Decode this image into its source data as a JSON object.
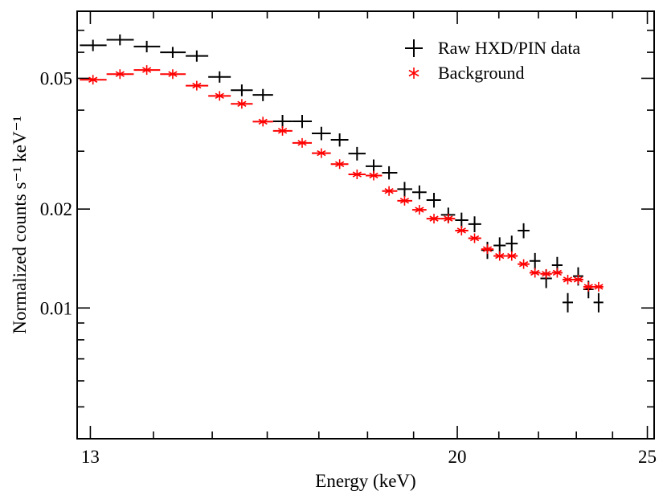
{
  "chart_data": {
    "type": "scatter",
    "title": "",
    "xlabel": "Energy (keV)",
    "ylabel": "Normalized counts s⁻¹ keV⁻¹",
    "x_scale": "log",
    "y_scale": "log",
    "xlim": [
      12.8,
      25.2
    ],
    "ylim": [
      0.004,
      0.08
    ],
    "x_ticks": [
      {
        "value": 13,
        "label": "13"
      },
      {
        "value": 20,
        "label": "20"
      },
      {
        "value": 25,
        "label": "25"
      }
    ],
    "y_ticks": [
      {
        "value": 0.01,
        "label": "0.01"
      },
      {
        "value": 0.02,
        "label": "0.02"
      },
      {
        "value": 0.05,
        "label": "0.05"
      }
    ],
    "grid": false,
    "legend_position": "top-right",
    "series": [
      {
        "name": "Raw HXD/PIN data",
        "marker": "plus",
        "color": "#000000",
        "points": [
          {
            "x": 13.04,
            "xlo": 12.84,
            "xhi": 13.25,
            "y": 0.063,
            "yerr": 0.0025
          },
          {
            "x": 13.46,
            "xlo": 13.25,
            "xhi": 13.68,
            "y": 0.0655,
            "yerr": 0.0025
          },
          {
            "x": 13.89,
            "xlo": 13.68,
            "xhi": 14.11,
            "y": 0.0625,
            "yerr": 0.0025
          },
          {
            "x": 14.32,
            "xlo": 14.11,
            "xhi": 14.54,
            "y": 0.06,
            "yerr": 0.0023
          },
          {
            "x": 14.73,
            "xlo": 14.54,
            "xhi": 14.93,
            "y": 0.0585,
            "yerr": 0.0023
          },
          {
            "x": 15.13,
            "xlo": 14.93,
            "xhi": 15.33,
            "y": 0.0505,
            "yerr": 0.002
          },
          {
            "x": 15.53,
            "xlo": 15.33,
            "xhi": 15.73,
            "y": 0.046,
            "yerr": 0.0019
          },
          {
            "x": 15.92,
            "xlo": 15.73,
            "xhi": 16.11,
            "y": 0.0445,
            "yerr": 0.0019
          },
          {
            "x": 16.29,
            "xlo": 16.11,
            "xhi": 16.48,
            "y": 0.037,
            "yerr": 0.0017
          },
          {
            "x": 16.67,
            "xlo": 16.48,
            "xhi": 16.86,
            "y": 0.037,
            "yerr": 0.0017
          },
          {
            "x": 17.05,
            "xlo": 16.86,
            "xhi": 17.24,
            "y": 0.034,
            "yerr": 0.0016
          },
          {
            "x": 17.42,
            "xlo": 17.24,
            "xhi": 17.6,
            "y": 0.0325,
            "yerr": 0.0015
          },
          {
            "x": 17.78,
            "xlo": 17.6,
            "xhi": 17.96,
            "y": 0.0295,
            "yerr": 0.0014
          },
          {
            "x": 18.13,
            "xlo": 17.96,
            "xhi": 18.31,
            "y": 0.027,
            "yerr": 0.0013
          },
          {
            "x": 18.46,
            "xlo": 18.31,
            "xhi": 18.64,
            "y": 0.0258,
            "yerr": 0.0012
          },
          {
            "x": 18.8,
            "xlo": 18.64,
            "xhi": 18.97,
            "y": 0.023,
            "yerr": 0.0012
          },
          {
            "x": 19.13,
            "xlo": 18.97,
            "xhi": 19.29,
            "y": 0.0225,
            "yerr": 0.0011
          },
          {
            "x": 19.46,
            "xlo": 19.29,
            "xhi": 19.62,
            "y": 0.0213,
            "yerr": 0.0011
          },
          {
            "x": 19.79,
            "xlo": 19.62,
            "xhi": 19.95,
            "y": 0.0192,
            "yerr": 0.001
          },
          {
            "x": 20.1,
            "xlo": 19.95,
            "xhi": 20.26,
            "y": 0.0185,
            "yerr": 0.001
          },
          {
            "x": 20.41,
            "xlo": 20.26,
            "xhi": 20.57,
            "y": 0.018,
            "yerr": 0.001
          },
          {
            "x": 20.72,
            "xlo": 20.57,
            "xhi": 20.87,
            "y": 0.015,
            "yerr": 0.0009
          },
          {
            "x": 21.02,
            "xlo": 20.87,
            "xhi": 21.17,
            "y": 0.0155,
            "yerr": 0.0009
          },
          {
            "x": 21.32,
            "xlo": 21.17,
            "xhi": 21.47,
            "y": 0.0157,
            "yerr": 0.0009
          },
          {
            "x": 21.62,
            "xlo": 21.47,
            "xhi": 21.77,
            "y": 0.0172,
            "yerr": 0.0009
          },
          {
            "x": 21.91,
            "xlo": 21.77,
            "xhi": 22.05,
            "y": 0.0139,
            "yerr": 0.0008
          },
          {
            "x": 22.2,
            "xlo": 22.05,
            "xhi": 22.35,
            "y": 0.0123,
            "yerr": 0.0008
          },
          {
            "x": 22.49,
            "xlo": 22.35,
            "xhi": 22.63,
            "y": 0.0135,
            "yerr": 0.0008
          },
          {
            "x": 22.77,
            "xlo": 22.63,
            "xhi": 22.91,
            "y": 0.0104,
            "yerr": 0.0007
          },
          {
            "x": 23.05,
            "xlo": 22.91,
            "xhi": 23.19,
            "y": 0.0125,
            "yerr": 0.0008
          },
          {
            "x": 23.33,
            "xlo": 23.19,
            "xhi": 23.47,
            "y": 0.0114,
            "yerr": 0.0007
          },
          {
            "x": 23.61,
            "xlo": 23.47,
            "xhi": 23.74,
            "y": 0.0104,
            "yerr": 0.0007
          }
        ]
      },
      {
        "name": "Background",
        "marker": "asterisk",
        "color": "#ff0000",
        "points": [
          {
            "x": 13.04,
            "xlo": 12.84,
            "xhi": 13.25,
            "y": 0.0495
          },
          {
            "x": 13.46,
            "xlo": 13.25,
            "xhi": 13.68,
            "y": 0.0515
          },
          {
            "x": 13.89,
            "xlo": 13.68,
            "xhi": 14.11,
            "y": 0.053
          },
          {
            "x": 14.32,
            "xlo": 14.11,
            "xhi": 14.54,
            "y": 0.0515
          },
          {
            "x": 14.73,
            "xlo": 14.54,
            "xhi": 14.93,
            "y": 0.0475
          },
          {
            "x": 15.13,
            "xlo": 14.93,
            "xhi": 15.33,
            "y": 0.0442
          },
          {
            "x": 15.53,
            "xlo": 15.33,
            "xhi": 15.73,
            "y": 0.0418
          },
          {
            "x": 15.92,
            "xlo": 15.73,
            "xhi": 16.11,
            "y": 0.0369
          },
          {
            "x": 16.29,
            "xlo": 16.11,
            "xhi": 16.48,
            "y": 0.0346
          },
          {
            "x": 16.67,
            "xlo": 16.48,
            "xhi": 16.86,
            "y": 0.0318
          },
          {
            "x": 17.05,
            "xlo": 16.86,
            "xhi": 17.24,
            "y": 0.0296
          },
          {
            "x": 17.42,
            "xlo": 17.24,
            "xhi": 17.6,
            "y": 0.0274
          },
          {
            "x": 17.78,
            "xlo": 17.6,
            "xhi": 17.96,
            "y": 0.0255
          },
          {
            "x": 18.13,
            "xlo": 17.96,
            "xhi": 18.31,
            "y": 0.0253
          },
          {
            "x": 18.46,
            "xlo": 18.31,
            "xhi": 18.64,
            "y": 0.0227
          },
          {
            "x": 18.8,
            "xlo": 18.64,
            "xhi": 18.97,
            "y": 0.0212
          },
          {
            "x": 19.13,
            "xlo": 18.97,
            "xhi": 19.29,
            "y": 0.0199
          },
          {
            "x": 19.46,
            "xlo": 19.29,
            "xhi": 19.62,
            "y": 0.0187
          },
          {
            "x": 19.79,
            "xlo": 19.62,
            "xhi": 19.95,
            "y": 0.0187
          },
          {
            "x": 20.1,
            "xlo": 19.95,
            "xhi": 20.26,
            "y": 0.0172
          },
          {
            "x": 20.41,
            "xlo": 20.26,
            "xhi": 20.57,
            "y": 0.0163
          },
          {
            "x": 20.72,
            "xlo": 20.57,
            "xhi": 20.87,
            "y": 0.0151
          },
          {
            "x": 21.02,
            "xlo": 20.87,
            "xhi": 21.17,
            "y": 0.0144
          },
          {
            "x": 21.32,
            "xlo": 21.17,
            "xhi": 21.47,
            "y": 0.0144
          },
          {
            "x": 21.62,
            "xlo": 21.47,
            "xhi": 21.77,
            "y": 0.0136
          },
          {
            "x": 21.91,
            "xlo": 21.77,
            "xhi": 22.05,
            "y": 0.0128
          },
          {
            "x": 22.2,
            "xlo": 22.05,
            "xhi": 22.35,
            "y": 0.0127
          },
          {
            "x": 22.49,
            "xlo": 22.35,
            "xhi": 22.63,
            "y": 0.0128
          },
          {
            "x": 22.77,
            "xlo": 22.63,
            "xhi": 22.91,
            "y": 0.0122
          },
          {
            "x": 23.05,
            "xlo": 22.91,
            "xhi": 23.19,
            "y": 0.0122
          },
          {
            "x": 23.33,
            "xlo": 23.19,
            "xhi": 23.47,
            "y": 0.0116
          },
          {
            "x": 23.61,
            "xlo": 23.47,
            "xhi": 23.74,
            "y": 0.0116
          }
        ]
      }
    ]
  }
}
